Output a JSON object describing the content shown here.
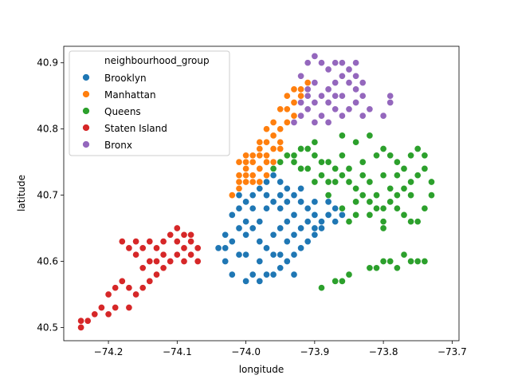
{
  "chart_data": {
    "type": "scatter",
    "title": "",
    "xlabel": "longitude",
    "ylabel": "latitude",
    "xlim": [
      -74.265,
      -73.69
    ],
    "ylim": [
      40.48,
      40.925
    ],
    "x_ticks": [
      -74.2,
      -74.1,
      -74.0,
      -73.9,
      -73.8,
      -73.7
    ],
    "x_tick_labels": [
      "−74.2",
      "−74.1",
      "−74.0",
      "−73.9",
      "−73.8",
      "−73.7"
    ],
    "y_ticks": [
      40.5,
      40.6,
      40.7,
      40.8,
      40.9
    ],
    "y_tick_labels": [
      "40.5",
      "40.6",
      "40.7",
      "40.8",
      "40.9"
    ],
    "grid": false,
    "legend": {
      "title": "neighbourhood_group",
      "placement": "top-left"
    },
    "series": [
      {
        "name": "Brooklyn",
        "color": "#1f77b4",
        "points": [
          [
            -74.03,
            40.62
          ],
          [
            -74.03,
            40.64
          ],
          [
            -74.02,
            40.63
          ],
          [
            -74.01,
            40.61
          ],
          [
            -74.01,
            40.65
          ],
          [
            -74.02,
            40.67
          ],
          [
            -74.01,
            40.68
          ],
          [
            -74.0,
            40.69
          ],
          [
            -73.99,
            40.7
          ],
          [
            -73.98,
            40.71
          ],
          [
            -73.97,
            40.72
          ],
          [
            -73.96,
            40.73
          ],
          [
            -73.95,
            40.72
          ],
          [
            -73.94,
            40.71
          ],
          [
            -73.93,
            40.7
          ],
          [
            -73.92,
            40.69
          ],
          [
            -73.91,
            40.68
          ],
          [
            -73.9,
            40.67
          ],
          [
            -73.89,
            40.66
          ],
          [
            -73.88,
            40.67
          ],
          [
            -73.87,
            40.68
          ],
          [
            -73.86,
            40.68
          ],
          [
            -73.9,
            40.64
          ],
          [
            -73.91,
            40.63
          ],
          [
            -73.92,
            40.62
          ],
          [
            -73.93,
            40.61
          ],
          [
            -73.94,
            40.6
          ],
          [
            -73.95,
            40.59
          ],
          [
            -73.96,
            40.58
          ],
          [
            -73.97,
            40.58
          ],
          [
            -73.99,
            40.58
          ],
          [
            -74.0,
            40.57
          ],
          [
            -73.98,
            40.6
          ],
          [
            -73.97,
            40.62
          ],
          [
            -73.96,
            40.64
          ],
          [
            -73.95,
            40.65
          ],
          [
            -73.94,
            40.66
          ],
          [
            -73.93,
            40.67
          ],
          [
            -73.98,
            40.66
          ],
          [
            -73.99,
            40.65
          ],
          [
            -74.0,
            40.64
          ],
          [
            -73.97,
            40.68
          ],
          [
            -73.96,
            40.69
          ],
          [
            -73.95,
            40.68
          ],
          [
            -73.92,
            40.65
          ],
          [
            -73.9,
            40.65
          ],
          [
            -73.89,
            40.65
          ],
          [
            -74.04,
            40.62
          ],
          [
            -74.03,
            40.6
          ],
          [
            -74.0,
            40.61
          ],
          [
            -73.93,
            40.64
          ],
          [
            -73.96,
            40.61
          ],
          [
            -73.98,
            40.63
          ],
          [
            -74.0,
            40.66
          ],
          [
            -74.01,
            40.7
          ],
          [
            -73.99,
            40.68
          ],
          [
            -73.94,
            40.69
          ],
          [
            -73.92,
            40.71
          ],
          [
            -73.95,
            40.7
          ],
          [
            -73.97,
            40.7
          ],
          [
            -73.95,
            40.61
          ],
          [
            -73.94,
            40.63
          ],
          [
            -73.91,
            40.66
          ],
          [
            -73.9,
            40.69
          ],
          [
            -73.88,
            40.69
          ],
          [
            -73.86,
            40.67
          ],
          [
            -74.02,
            40.58
          ],
          [
            -73.98,
            40.57
          ],
          [
            -73.93,
            40.58
          ],
          [
            -73.87,
            40.66
          ]
        ]
      },
      {
        "name": "Manhattan",
        "color": "#ff7f0e",
        "points": [
          [
            -74.02,
            40.7
          ],
          [
            -74.01,
            40.71
          ],
          [
            -74.01,
            40.72
          ],
          [
            -74.0,
            40.73
          ],
          [
            -74.0,
            40.74
          ],
          [
            -73.99,
            40.75
          ],
          [
            -73.99,
            40.76
          ],
          [
            -73.98,
            40.77
          ],
          [
            -73.98,
            40.74
          ],
          [
            -73.97,
            40.78
          ],
          [
            -73.97,
            40.76
          ],
          [
            -73.96,
            40.79
          ],
          [
            -73.96,
            40.77
          ],
          [
            -73.95,
            40.8
          ],
          [
            -73.95,
            40.78
          ],
          [
            -73.94,
            40.81
          ],
          [
            -73.94,
            40.83
          ],
          [
            -73.93,
            40.84
          ],
          [
            -73.93,
            40.82
          ],
          [
            -73.92,
            40.85
          ],
          [
            -73.92,
            40.86
          ],
          [
            -73.91,
            40.87
          ],
          [
            -73.99,
            40.72
          ],
          [
            -73.98,
            40.72
          ],
          [
            -73.97,
            40.75
          ],
          [
            -73.96,
            40.75
          ],
          [
            -73.95,
            40.77
          ],
          [
            -74.0,
            40.75
          ],
          [
            -73.99,
            40.73
          ],
          [
            -73.98,
            40.76
          ],
          [
            -74.01,
            40.73
          ],
          [
            -74.0,
            40.72
          ],
          [
            -73.97,
            40.73
          ],
          [
            -73.96,
            40.81
          ],
          [
            -73.94,
            40.85
          ],
          [
            -73.93,
            40.86
          ],
          [
            -73.95,
            40.83
          ],
          [
            -73.98,
            40.78
          ],
          [
            -74.0,
            40.76
          ],
          [
            -74.01,
            40.75
          ],
          [
            -73.97,
            40.8
          ],
          [
            -73.92,
            40.84
          ]
        ]
      },
      {
        "name": "Queens",
        "color": "#2ca02c",
        "points": [
          [
            -73.95,
            40.75
          ],
          [
            -73.94,
            40.76
          ],
          [
            -73.93,
            40.76
          ],
          [
            -73.92,
            40.77
          ],
          [
            -73.91,
            40.77
          ],
          [
            -73.9,
            40.76
          ],
          [
            -73.89,
            40.75
          ],
          [
            -73.88,
            40.75
          ],
          [
            -73.87,
            40.74
          ],
          [
            -73.86,
            40.73
          ],
          [
            -73.85,
            40.72
          ],
          [
            -73.84,
            40.71
          ],
          [
            -73.83,
            40.7
          ],
          [
            -73.82,
            40.69
          ],
          [
            -73.81,
            40.68
          ],
          [
            -73.8,
            40.68
          ],
          [
            -73.79,
            40.69
          ],
          [
            -73.78,
            40.7
          ],
          [
            -73.77,
            40.71
          ],
          [
            -73.76,
            40.72
          ],
          [
            -73.75,
            40.73
          ],
          [
            -73.74,
            40.74
          ],
          [
            -73.73,
            40.72
          ],
          [
            -73.73,
            40.7
          ],
          [
            -73.74,
            40.68
          ],
          [
            -73.75,
            40.66
          ],
          [
            -73.76,
            40.66
          ],
          [
            -73.77,
            40.67
          ],
          [
            -73.78,
            40.68
          ],
          [
            -73.8,
            40.66
          ],
          [
            -73.82,
            40.67
          ],
          [
            -73.84,
            40.67
          ],
          [
            -73.85,
            40.66
          ],
          [
            -73.86,
            40.68
          ],
          [
            -73.88,
            40.7
          ],
          [
            -73.9,
            40.72
          ],
          [
            -73.91,
            40.74
          ],
          [
            -73.92,
            40.74
          ],
          [
            -73.89,
            40.73
          ],
          [
            -73.87,
            40.72
          ],
          [
            -73.85,
            40.74
          ],
          [
            -73.83,
            40.75
          ],
          [
            -73.81,
            40.76
          ],
          [
            -73.8,
            40.77
          ],
          [
            -73.79,
            40.76
          ],
          [
            -73.78,
            40.75
          ],
          [
            -73.77,
            40.74
          ],
          [
            -73.76,
            40.76
          ],
          [
            -73.75,
            40.77
          ],
          [
            -73.74,
            40.76
          ],
          [
            -73.82,
            40.72
          ],
          [
            -73.8,
            40.73
          ],
          [
            -73.79,
            40.71
          ],
          [
            -73.81,
            40.7
          ],
          [
            -73.83,
            40.73
          ],
          [
            -73.86,
            40.76
          ],
          [
            -73.84,
            40.78
          ],
          [
            -73.82,
            40.79
          ],
          [
            -73.86,
            40.79
          ],
          [
            -73.9,
            40.78
          ],
          [
            -73.93,
            40.75
          ],
          [
            -73.87,
            40.57
          ],
          [
            -73.86,
            40.57
          ],
          [
            -73.85,
            40.58
          ],
          [
            -73.82,
            40.59
          ],
          [
            -73.81,
            40.59
          ],
          [
            -73.8,
            40.6
          ],
          [
            -73.79,
            40.6
          ],
          [
            -73.78,
            40.59
          ],
          [
            -73.77,
            40.61
          ],
          [
            -73.76,
            40.6
          ],
          [
            -73.75,
            40.6
          ],
          [
            -73.74,
            40.6
          ],
          [
            -73.89,
            40.56
          ],
          [
            -73.8,
            40.65
          ],
          [
            -73.76,
            40.7
          ],
          [
            -73.78,
            40.73
          ],
          [
            -73.84,
            40.69
          ],
          [
            -73.88,
            40.72
          ],
          [
            -73.96,
            40.74
          ]
        ]
      },
      {
        "name": "Staten Island",
        "color": "#d62728",
        "points": [
          [
            -74.24,
            40.51
          ],
          [
            -74.24,
            40.5
          ],
          [
            -74.23,
            40.51
          ],
          [
            -74.22,
            40.52
          ],
          [
            -74.21,
            40.53
          ],
          [
            -74.2,
            40.55
          ],
          [
            -74.19,
            40.56
          ],
          [
            -74.18,
            40.57
          ],
          [
            -74.17,
            40.56
          ],
          [
            -74.16,
            40.55
          ],
          [
            -74.15,
            40.56
          ],
          [
            -74.14,
            40.57
          ],
          [
            -74.13,
            40.58
          ],
          [
            -74.12,
            40.59
          ],
          [
            -74.11,
            40.6
          ],
          [
            -74.1,
            40.61
          ],
          [
            -74.09,
            40.62
          ],
          [
            -74.08,
            40.63
          ],
          [
            -74.07,
            40.62
          ],
          [
            -74.08,
            40.61
          ],
          [
            -74.09,
            40.6
          ],
          [
            -74.1,
            40.63
          ],
          [
            -74.11,
            40.64
          ],
          [
            -74.12,
            40.63
          ],
          [
            -74.13,
            40.62
          ],
          [
            -74.14,
            40.63
          ],
          [
            -74.15,
            40.62
          ],
          [
            -74.16,
            40.63
          ],
          [
            -74.17,
            40.62
          ],
          [
            -74.18,
            40.63
          ],
          [
            -74.16,
            40.61
          ],
          [
            -74.14,
            40.6
          ],
          [
            -74.1,
            40.65
          ],
          [
            -74.09,
            40.64
          ],
          [
            -74.08,
            40.64
          ],
          [
            -74.07,
            40.6
          ],
          [
            -74.12,
            40.61
          ],
          [
            -74.17,
            40.53
          ],
          [
            -74.19,
            40.53
          ],
          [
            -74.2,
            40.52
          ],
          [
            -74.15,
            40.59
          ],
          [
            -74.13,
            40.6
          ]
        ]
      },
      {
        "name": "Bronx",
        "color": "#9467bd",
        "points": [
          [
            -73.93,
            40.81
          ],
          [
            -73.92,
            40.82
          ],
          [
            -73.91,
            40.83
          ],
          [
            -73.9,
            40.84
          ],
          [
            -73.89,
            40.85
          ],
          [
            -73.88,
            40.86
          ],
          [
            -73.87,
            40.87
          ],
          [
            -73.86,
            40.88
          ],
          [
            -73.85,
            40.89
          ],
          [
            -73.84,
            40.9
          ],
          [
            -73.86,
            40.9
          ],
          [
            -73.87,
            40.9
          ],
          [
            -73.88,
            40.89
          ],
          [
            -73.89,
            40.9
          ],
          [
            -73.9,
            40.91
          ],
          [
            -73.91,
            40.9
          ],
          [
            -73.92,
            40.88
          ],
          [
            -73.91,
            40.86
          ],
          [
            -73.9,
            40.87
          ],
          [
            -73.88,
            40.84
          ],
          [
            -73.87,
            40.83
          ],
          [
            -73.86,
            40.82
          ],
          [
            -73.85,
            40.83
          ],
          [
            -73.84,
            40.84
          ],
          [
            -73.83,
            40.85
          ],
          [
            -73.82,
            40.83
          ],
          [
            -73.83,
            40.82
          ],
          [
            -73.84,
            40.86
          ],
          [
            -73.85,
            40.87
          ],
          [
            -73.86,
            40.85
          ],
          [
            -73.89,
            40.82
          ],
          [
            -73.88,
            40.81
          ],
          [
            -73.9,
            40.81
          ],
          [
            -73.91,
            40.85
          ],
          [
            -73.84,
            40.88
          ],
          [
            -73.83,
            40.87
          ],
          [
            -73.79,
            40.85
          ],
          [
            -73.79,
            40.84
          ],
          [
            -73.8,
            40.82
          ],
          [
            -73.87,
            40.85
          ],
          [
            -73.92,
            40.84
          ]
        ]
      }
    ]
  }
}
